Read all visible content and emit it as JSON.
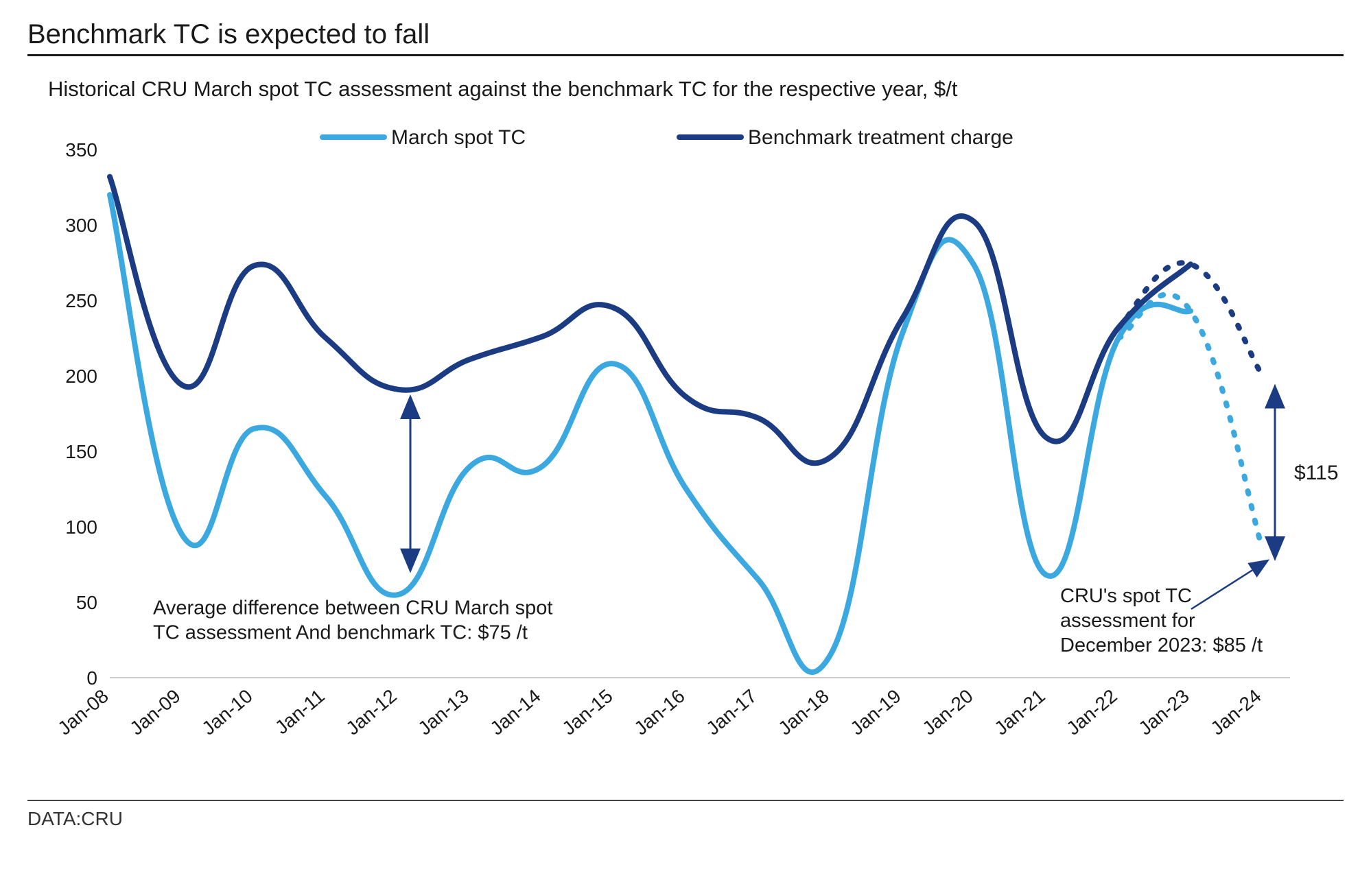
{
  "title": "Benchmark TC is expected to fall",
  "subtitle": "Historical CRU March spot TC assessment against the benchmark TC for the respective year, $/t",
  "data_source": "DATA:CRU",
  "chart": {
    "type": "line",
    "background_color": "#ffffff",
    "grid_color": "#d0d0d0",
    "axis_color": "#cccccc",
    "text_color": "#1a1a1a",
    "label_fontsize": 28,
    "tick_fontsize": 28,
    "ylim": [
      0,
      350
    ],
    "ytick_step": 50,
    "x_labels": [
      "Jan-08",
      "Jan-09",
      "Jan-10",
      "Jan-11",
      "Jan-12",
      "Jan-13",
      "Jan-14",
      "Jan-15",
      "Jan-16",
      "Jan-17",
      "Jan-18",
      "Jan-19",
      "Jan-20",
      "Jan-21",
      "Jan-22",
      "Jan-23",
      "Jan-24"
    ],
    "x_label_rotation_deg": -40,
    "line_width": 8,
    "series": [
      {
        "name": "March spot TC",
        "color": "#3ba8df",
        "solid_values": [
          320,
          95,
          165,
          120,
          55,
          140,
          140,
          208,
          125,
          65,
          15,
          228,
          273,
          68,
          225,
          243
        ],
        "dotted_values_from_index": 15,
        "dotted_values": [
          243,
          85
        ]
      },
      {
        "name": "Benchmark treatment charge",
        "color": "#1b3b82",
        "solid_values": [
          332,
          194,
          273,
          225,
          191,
          211,
          226,
          245,
          186,
          172,
          146,
          238,
          302,
          159,
          232,
          274
        ],
        "dotted_values_from_index": 15,
        "dotted_values": [
          274,
          200
        ]
      }
    ],
    "annotations": {
      "avg_diff_text_line1": "Average difference between CRU March spot",
      "avg_diff_text_line2": "TC assessment And benchmark TC: $75 /t",
      "spot_tc_text_line1": "CRU's spot TC",
      "spot_tc_text_line2": "assessment for",
      "spot_tc_text_line3": "December 2023: $85 /t",
      "right_diff_label": "$115",
      "arrow_color": "#1b3b82",
      "annotation_text_color": "#1a1a1a",
      "annotation_fontsize": 29
    },
    "legend": {
      "items": [
        {
          "label": "March spot TC",
          "color": "#3ba8df"
        },
        {
          "label": "Benchmark treatment charge",
          "color": "#1b3b82"
        }
      ]
    }
  }
}
